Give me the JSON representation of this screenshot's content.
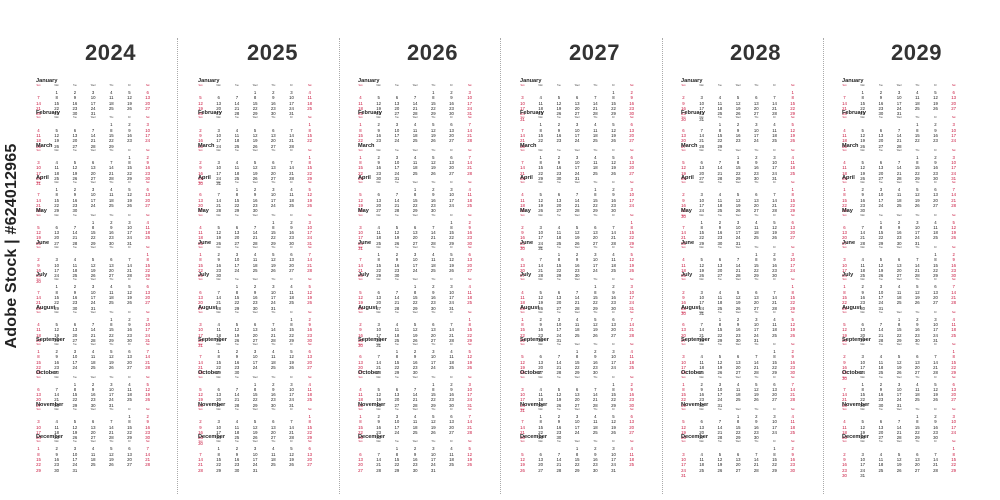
{
  "years": [
    2024,
    2025,
    2026,
    2027,
    2028,
    2029
  ],
  "months": [
    "January",
    "February",
    "March",
    "April",
    "May",
    "June",
    "July",
    "August",
    "September",
    "October",
    "November",
    "December"
  ],
  "weekdays": [
    "Sun",
    "Mon",
    "Tue",
    "Wed",
    "Thu",
    "Fri",
    "Sat"
  ],
  "watermark": "Adobe Stock | #624012965",
  "colors": {
    "weekend": "#c8143c",
    "text": "#222222",
    "separator": "#aaaaaa"
  }
}
